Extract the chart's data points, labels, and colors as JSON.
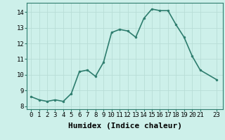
{
  "x": [
    0,
    1,
    2,
    3,
    4,
    5,
    6,
    7,
    8,
    9,
    10,
    11,
    12,
    13,
    14,
    15,
    16,
    17,
    18,
    19,
    20,
    21,
    23
  ],
  "y": [
    8.6,
    8.4,
    8.3,
    8.4,
    8.3,
    8.8,
    10.2,
    10.3,
    9.9,
    10.8,
    12.7,
    12.9,
    12.8,
    12.4,
    13.6,
    14.2,
    14.1,
    14.1,
    13.2,
    12.4,
    11.2,
    10.3,
    9.7
  ],
  "line_color": "#2e7d6e",
  "marker": "o",
  "marker_size": 2.0,
  "line_width": 1.2,
  "xlabel": "Humidex (Indice chaleur)",
  "xlabel_fontsize": 8,
  "xlabel_bold": true,
  "ylim": [
    7.8,
    14.6
  ],
  "xlim": [
    -0.5,
    23.8
  ],
  "yticks": [
    8,
    9,
    10,
    11,
    12,
    13,
    14
  ],
  "xticks": [
    0,
    1,
    2,
    3,
    4,
    5,
    6,
    7,
    8,
    9,
    10,
    11,
    12,
    13,
    14,
    15,
    16,
    17,
    18,
    19,
    20,
    21,
    23
  ],
  "xtick_labels": [
    "0",
    "1",
    "2",
    "3",
    "4",
    "5",
    "6",
    "7",
    "8",
    "9",
    "10",
    "11",
    "12",
    "13",
    "14",
    "15",
    "16",
    "17",
    "18",
    "19",
    "20",
    "21",
    "23"
  ],
  "background_color": "#cdf0ea",
  "grid_color": "#b8ddd6",
  "tick_fontsize": 6.5,
  "spine_color": "#2e7d6e"
}
